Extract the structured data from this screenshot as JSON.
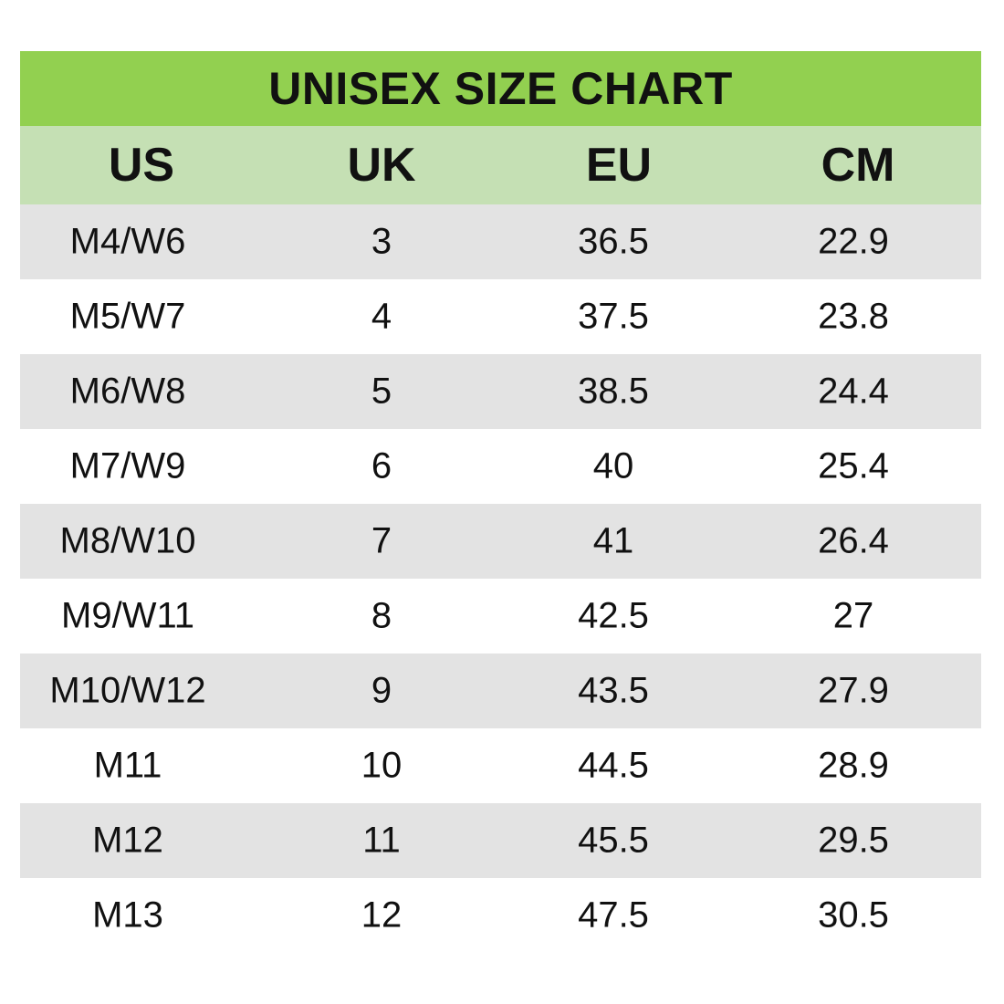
{
  "chart_data": {
    "type": "table",
    "title": "UNISEX SIZE CHART",
    "columns": [
      "US",
      "UK",
      "EU",
      "CM"
    ],
    "rows": [
      [
        "M4/W6",
        "3",
        "36.5",
        "22.9"
      ],
      [
        "M5/W7",
        "4",
        "37.5",
        "23.8"
      ],
      [
        "M6/W8",
        "5",
        "38.5",
        "24.4"
      ],
      [
        "M7/W9",
        "6",
        "40",
        "25.4"
      ],
      [
        "M8/W10",
        "7",
        "41",
        "26.4"
      ],
      [
        "M9/W11",
        "8",
        "42.5",
        "27"
      ],
      [
        "M10/W12",
        "9",
        "43.5",
        "27.9"
      ],
      [
        "M11",
        "10",
        "44.5",
        "28.9"
      ],
      [
        "M12",
        "11",
        "45.5",
        "29.5"
      ],
      [
        "M13",
        "12",
        "47.5",
        "30.5"
      ]
    ]
  },
  "colors": {
    "title_background": "#92d050",
    "header_background": "#c5e0b4",
    "shaded_row": "#e3e3e3",
    "plain_row": "#ffffff"
  }
}
